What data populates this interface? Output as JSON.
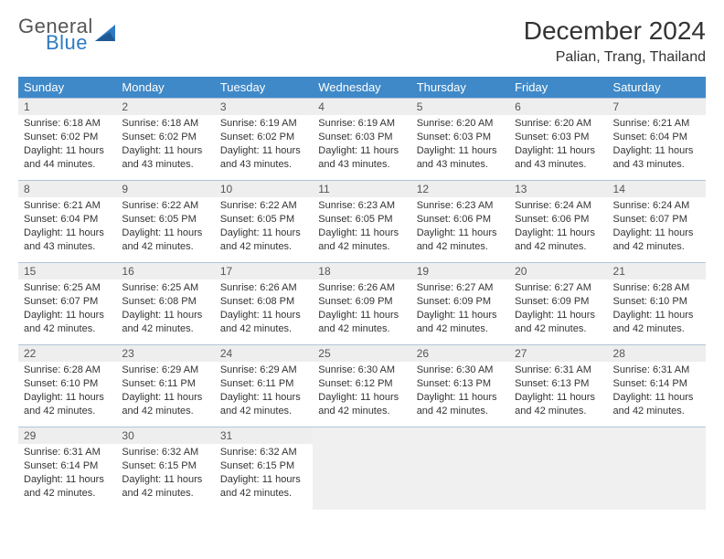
{
  "logo": {
    "general": "General",
    "blue": "Blue"
  },
  "title": "December 2024",
  "location": "Palian, Trang, Thailand",
  "colors": {
    "header_bg": "#3f89c8",
    "header_text": "#ffffff",
    "daynum_bg": "#eeeeee",
    "border": "#b0c4d8",
    "logo_blue": "#2f7ac0",
    "text": "#333333",
    "empty_bg": "#f0f0f0"
  },
  "weekdays": [
    "Sunday",
    "Monday",
    "Tuesday",
    "Wednesday",
    "Thursday",
    "Friday",
    "Saturday"
  ],
  "weeks": [
    [
      {
        "day": "1",
        "sunrise": "Sunrise: 6:18 AM",
        "sunset": "Sunset: 6:02 PM",
        "daylight": "Daylight: 11 hours and 44 minutes."
      },
      {
        "day": "2",
        "sunrise": "Sunrise: 6:18 AM",
        "sunset": "Sunset: 6:02 PM",
        "daylight": "Daylight: 11 hours and 43 minutes."
      },
      {
        "day": "3",
        "sunrise": "Sunrise: 6:19 AM",
        "sunset": "Sunset: 6:02 PM",
        "daylight": "Daylight: 11 hours and 43 minutes."
      },
      {
        "day": "4",
        "sunrise": "Sunrise: 6:19 AM",
        "sunset": "Sunset: 6:03 PM",
        "daylight": "Daylight: 11 hours and 43 minutes."
      },
      {
        "day": "5",
        "sunrise": "Sunrise: 6:20 AM",
        "sunset": "Sunset: 6:03 PM",
        "daylight": "Daylight: 11 hours and 43 minutes."
      },
      {
        "day": "6",
        "sunrise": "Sunrise: 6:20 AM",
        "sunset": "Sunset: 6:03 PM",
        "daylight": "Daylight: 11 hours and 43 minutes."
      },
      {
        "day": "7",
        "sunrise": "Sunrise: 6:21 AM",
        "sunset": "Sunset: 6:04 PM",
        "daylight": "Daylight: 11 hours and 43 minutes."
      }
    ],
    [
      {
        "day": "8",
        "sunrise": "Sunrise: 6:21 AM",
        "sunset": "Sunset: 6:04 PM",
        "daylight": "Daylight: 11 hours and 43 minutes."
      },
      {
        "day": "9",
        "sunrise": "Sunrise: 6:22 AM",
        "sunset": "Sunset: 6:05 PM",
        "daylight": "Daylight: 11 hours and 42 minutes."
      },
      {
        "day": "10",
        "sunrise": "Sunrise: 6:22 AM",
        "sunset": "Sunset: 6:05 PM",
        "daylight": "Daylight: 11 hours and 42 minutes."
      },
      {
        "day": "11",
        "sunrise": "Sunrise: 6:23 AM",
        "sunset": "Sunset: 6:05 PM",
        "daylight": "Daylight: 11 hours and 42 minutes."
      },
      {
        "day": "12",
        "sunrise": "Sunrise: 6:23 AM",
        "sunset": "Sunset: 6:06 PM",
        "daylight": "Daylight: 11 hours and 42 minutes."
      },
      {
        "day": "13",
        "sunrise": "Sunrise: 6:24 AM",
        "sunset": "Sunset: 6:06 PM",
        "daylight": "Daylight: 11 hours and 42 minutes."
      },
      {
        "day": "14",
        "sunrise": "Sunrise: 6:24 AM",
        "sunset": "Sunset: 6:07 PM",
        "daylight": "Daylight: 11 hours and 42 minutes."
      }
    ],
    [
      {
        "day": "15",
        "sunrise": "Sunrise: 6:25 AM",
        "sunset": "Sunset: 6:07 PM",
        "daylight": "Daylight: 11 hours and 42 minutes."
      },
      {
        "day": "16",
        "sunrise": "Sunrise: 6:25 AM",
        "sunset": "Sunset: 6:08 PM",
        "daylight": "Daylight: 11 hours and 42 minutes."
      },
      {
        "day": "17",
        "sunrise": "Sunrise: 6:26 AM",
        "sunset": "Sunset: 6:08 PM",
        "daylight": "Daylight: 11 hours and 42 minutes."
      },
      {
        "day": "18",
        "sunrise": "Sunrise: 6:26 AM",
        "sunset": "Sunset: 6:09 PM",
        "daylight": "Daylight: 11 hours and 42 minutes."
      },
      {
        "day": "19",
        "sunrise": "Sunrise: 6:27 AM",
        "sunset": "Sunset: 6:09 PM",
        "daylight": "Daylight: 11 hours and 42 minutes."
      },
      {
        "day": "20",
        "sunrise": "Sunrise: 6:27 AM",
        "sunset": "Sunset: 6:09 PM",
        "daylight": "Daylight: 11 hours and 42 minutes."
      },
      {
        "day": "21",
        "sunrise": "Sunrise: 6:28 AM",
        "sunset": "Sunset: 6:10 PM",
        "daylight": "Daylight: 11 hours and 42 minutes."
      }
    ],
    [
      {
        "day": "22",
        "sunrise": "Sunrise: 6:28 AM",
        "sunset": "Sunset: 6:10 PM",
        "daylight": "Daylight: 11 hours and 42 minutes."
      },
      {
        "day": "23",
        "sunrise": "Sunrise: 6:29 AM",
        "sunset": "Sunset: 6:11 PM",
        "daylight": "Daylight: 11 hours and 42 minutes."
      },
      {
        "day": "24",
        "sunrise": "Sunrise: 6:29 AM",
        "sunset": "Sunset: 6:11 PM",
        "daylight": "Daylight: 11 hours and 42 minutes."
      },
      {
        "day": "25",
        "sunrise": "Sunrise: 6:30 AM",
        "sunset": "Sunset: 6:12 PM",
        "daylight": "Daylight: 11 hours and 42 minutes."
      },
      {
        "day": "26",
        "sunrise": "Sunrise: 6:30 AM",
        "sunset": "Sunset: 6:13 PM",
        "daylight": "Daylight: 11 hours and 42 minutes."
      },
      {
        "day": "27",
        "sunrise": "Sunrise: 6:31 AM",
        "sunset": "Sunset: 6:13 PM",
        "daylight": "Daylight: 11 hours and 42 minutes."
      },
      {
        "day": "28",
        "sunrise": "Sunrise: 6:31 AM",
        "sunset": "Sunset: 6:14 PM",
        "daylight": "Daylight: 11 hours and 42 minutes."
      }
    ],
    [
      {
        "day": "29",
        "sunrise": "Sunrise: 6:31 AM",
        "sunset": "Sunset: 6:14 PM",
        "daylight": "Daylight: 11 hours and 42 minutes."
      },
      {
        "day": "30",
        "sunrise": "Sunrise: 6:32 AM",
        "sunset": "Sunset: 6:15 PM",
        "daylight": "Daylight: 11 hours and 42 minutes."
      },
      {
        "day": "31",
        "sunrise": "Sunrise: 6:32 AM",
        "sunset": "Sunset: 6:15 PM",
        "daylight": "Daylight: 11 hours and 42 minutes."
      },
      null,
      null,
      null,
      null
    ]
  ]
}
